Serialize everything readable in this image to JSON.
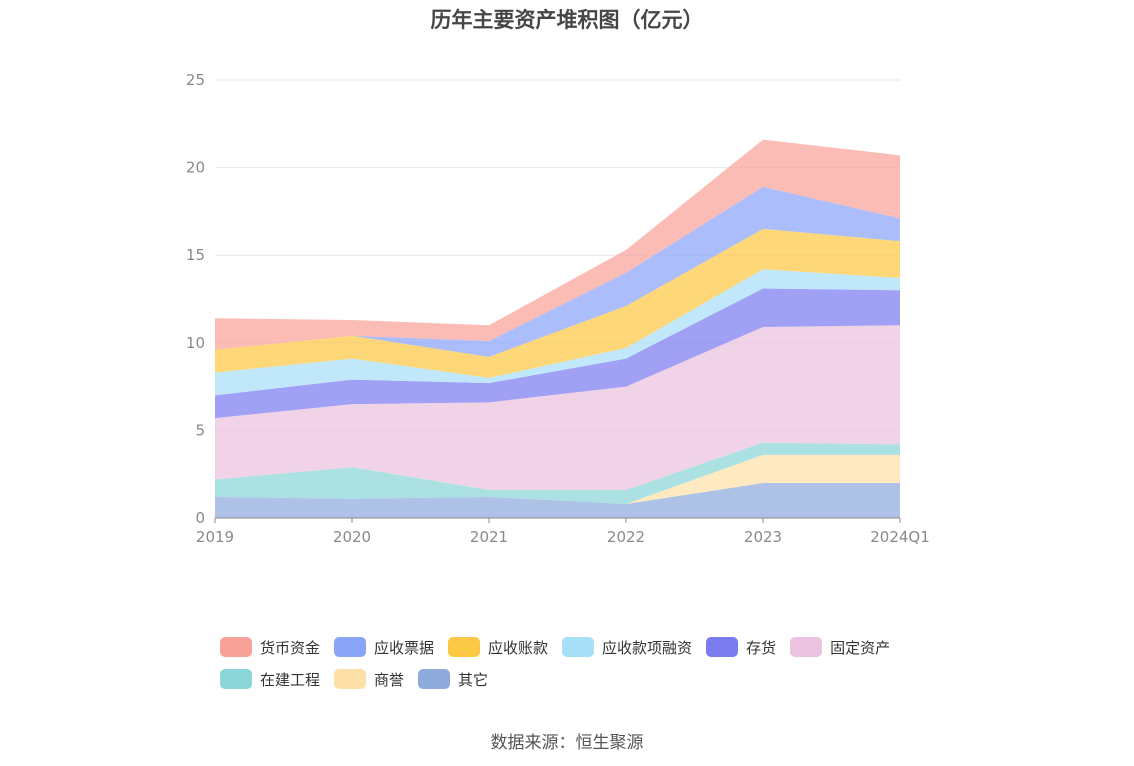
{
  "title": "历年主要资产堆积图（亿元）",
  "source": "数据来源：恒生聚源",
  "chart_data": {
    "type": "area",
    "stacked": true,
    "categories": [
      "2019",
      "2020",
      "2021",
      "2022",
      "2023",
      "2024Q1"
    ],
    "ylim": [
      0,
      25
    ],
    "yticks": [
      0,
      5,
      10,
      15,
      20,
      25
    ],
    "grid": true,
    "legend_position": "bottom",
    "series": [
      {
        "name": "其它",
        "color": "#8eabdc",
        "values": [
          1.2,
          1.1,
          1.2,
          0.8,
          2.0,
          2.0
        ]
      },
      {
        "name": "商誉",
        "color": "#fde0a8",
        "values": [
          0.0,
          0.0,
          0.0,
          0.0,
          1.6,
          1.6
        ]
      },
      {
        "name": "在建工程",
        "color": "#8ad6d8",
        "values": [
          1.0,
          1.8,
          0.4,
          0.8,
          0.7,
          0.6
        ]
      },
      {
        "name": "固定资产",
        "color": "#ebc2df",
        "values": [
          3.5,
          3.6,
          5.0,
          5.9,
          6.6,
          6.8
        ]
      },
      {
        "name": "存货",
        "color": "#7b7cf0",
        "values": [
          1.3,
          1.4,
          1.1,
          1.6,
          2.2,
          2.0
        ]
      },
      {
        "name": "应收款项融资",
        "color": "#a8dff8",
        "values": [
          1.3,
          1.2,
          0.3,
          0.6,
          1.1,
          0.7
        ]
      },
      {
        "name": "应收账款",
        "color": "#fdc844",
        "values": [
          1.3,
          1.3,
          1.2,
          2.4,
          2.3,
          2.1
        ]
      },
      {
        "name": "应收票据",
        "color": "#8aa4f8",
        "values": [
          0.0,
          0.0,
          0.9,
          1.9,
          2.4,
          1.3
        ]
      },
      {
        "name": "货币资金",
        "color": "#f9a29a",
        "values": [
          1.8,
          0.9,
          0.9,
          1.3,
          2.7,
          3.6
        ]
      }
    ],
    "legend_order": [
      "货币资金",
      "应收票据",
      "应收账款",
      "应收款项融资",
      "存货",
      "固定资产",
      "在建工程",
      "商誉",
      "其它"
    ]
  }
}
